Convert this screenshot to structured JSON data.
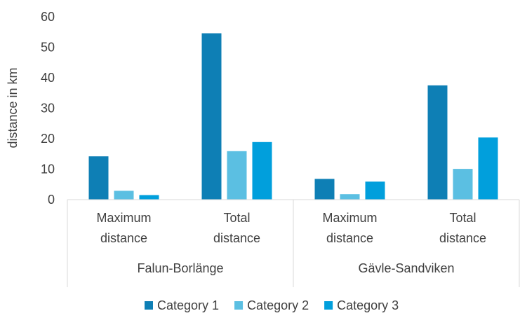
{
  "chart_data": {
    "type": "bar",
    "title": "",
    "xlabel": "",
    "ylabel": "distance in km",
    "ylim": [
      0,
      60
    ],
    "yticks": [
      0,
      10,
      20,
      30,
      40,
      50,
      60
    ],
    "grid": false,
    "legend_position": "bottom",
    "groups": [
      {
        "label": "Falun-Borlänge",
        "categories": [
          "Maximum distance",
          "Total distance"
        ]
      },
      {
        "label": "Gävle-Sandviken",
        "categories": [
          "Maximum distance",
          "Total distance"
        ]
      }
    ],
    "category_lines": [
      [
        "Maximum",
        "distance"
      ],
      [
        "Total",
        "distance"
      ],
      [
        "Maximum",
        "distance"
      ],
      [
        "Total",
        "distance"
      ]
    ],
    "series": [
      {
        "name": "Category 1",
        "color": "#0E7FB5",
        "values": [
          14.2,
          54.6,
          6.8,
          37.5
        ]
      },
      {
        "name": "Category 2",
        "color": "#5BBFE2",
        "values": [
          2.9,
          15.9,
          1.8,
          10.1
        ]
      },
      {
        "name": "Category 3",
        "color": "#019FDC",
        "values": [
          1.5,
          18.9,
          5.9,
          20.4
        ]
      }
    ]
  }
}
